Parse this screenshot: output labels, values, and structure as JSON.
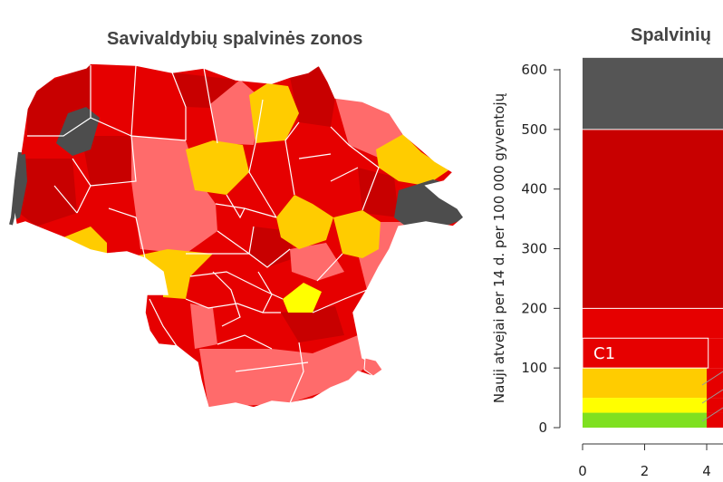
{
  "map": {
    "title": "Savivaldybių spalvinės zonos",
    "colors": {
      "grey": "#4d4d4d",
      "dark_red": "#c80000",
      "red": "#e60000",
      "pink": "#ff6b6b",
      "orange": "#ffcc00",
      "yellow": "#ffff00",
      "green": "#7fe020"
    }
  },
  "chart_data": {
    "type": "bar",
    "title": "Spalvinių",
    "ylabel": "Nauji atvejai per 14 d. per 100 000 gyventojų",
    "ylim": [
      0,
      620
    ],
    "y_ticks": [
      "0",
      "100",
      "200",
      "300",
      "400",
      "500",
      "600"
    ],
    "x_ticks": [
      "0",
      "2",
      "4"
    ],
    "bands": [
      {
        "from": 0,
        "to": 25,
        "color": "#7fe020"
      },
      {
        "from": 25,
        "to": 50,
        "color": "#ffff00"
      },
      {
        "from": 50,
        "to": 100,
        "color": "#ffcc00"
      },
      {
        "from": 100,
        "to": 150,
        "color": "#e60000",
        "label": "C1"
      },
      {
        "from": 150,
        "to": 200,
        "color": "#e60000"
      },
      {
        "from": 200,
        "to": 500,
        "color": "#c80000"
      },
      {
        "from": 500,
        "to": 620,
        "color": "#555555"
      }
    ]
  }
}
